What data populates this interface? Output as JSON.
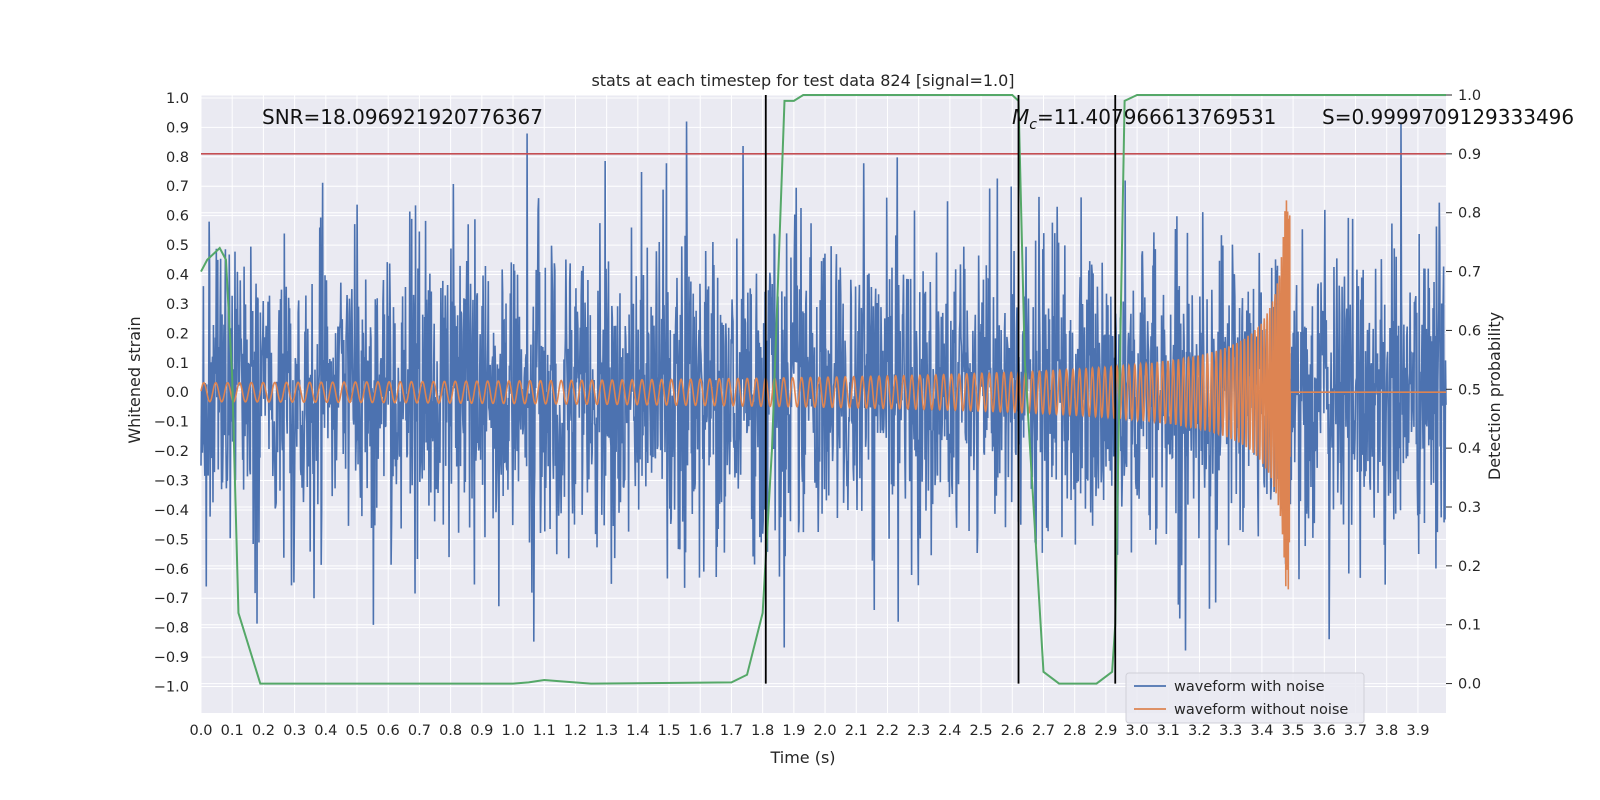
{
  "chart_data": {
    "type": "line",
    "title": "stats at each timestep for test data 824 [signal=1.0]",
    "xlabel": "Time (s)",
    "ylabel": "Whitened strain",
    "ylabel_right": "Detection probability",
    "xlim": [
      0.0,
      3.99
    ],
    "ylim": [
      -1.09,
      1.01
    ],
    "ylim_right": [
      -0.05,
      1.0
    ],
    "xticks": [
      "0.0",
      "0.1",
      "0.2",
      "0.3",
      "0.4",
      "0.5",
      "0.6",
      "0.7",
      "0.8",
      "0.9",
      "1.0",
      "1.1",
      "1.2",
      "1.3",
      "1.4",
      "1.5",
      "1.6",
      "1.7",
      "1.8",
      "1.9",
      "2.0",
      "2.1",
      "2.2",
      "2.3",
      "2.4",
      "2.5",
      "2.6",
      "2.7",
      "2.8",
      "2.9",
      "3.0",
      "3.1",
      "3.2",
      "3.3",
      "3.4",
      "3.5",
      "3.6",
      "3.7",
      "3.8",
      "3.9"
    ],
    "yticks": [
      "1.0",
      "0.9",
      "0.8",
      "0.7",
      "0.6",
      "0.5",
      "0.4",
      "0.3",
      "0.2",
      "0.1",
      "0.0",
      "−0.1",
      "−0.2",
      "−0.3",
      "−0.4",
      "−0.5",
      "−0.6",
      "−0.7",
      "−0.8",
      "−0.9",
      "−1.0"
    ],
    "yticks_right": [
      "1.0",
      "0.9",
      "0.8",
      "0.7",
      "0.6",
      "0.5",
      "0.4",
      "0.3",
      "0.2",
      "0.1",
      "0.0"
    ],
    "annotations": {
      "snr": "SNR=18.096921920776367",
      "mc_symbol": "M",
      "mc_sub": "c",
      "mc_value": "=11.407966613769531",
      "s": "S=0.9999709129333496"
    },
    "threshold_right": 0.9,
    "vertical_lines_x": [
      1.81,
      2.62,
      2.93
    ],
    "series": [
      {
        "name": "waveform with noise",
        "color": "#4c72b0",
        "kind": "noise",
        "amplitude_range": [
          -1.0,
          0.92
        ]
      },
      {
        "name": "waveform without noise",
        "color": "#dd8452",
        "kind": "chirp",
        "merger_time": 3.49,
        "peak_amplitude": 0.67
      },
      {
        "name": "detection probability",
        "color": "#55a868",
        "axis": "right",
        "x": [
          0.0,
          0.02,
          0.06,
          0.08,
          0.1,
          0.12,
          0.19,
          1.0,
          1.05,
          1.1,
          1.15,
          1.25,
          1.7,
          1.75,
          1.8,
          1.83,
          1.87,
          1.9,
          1.93,
          2.6,
          2.62,
          2.64,
          2.7,
          2.75,
          2.87,
          2.92,
          2.93,
          2.96,
          3.0,
          3.99
        ],
        "y": [
          0.7,
          0.72,
          0.74,
          0.72,
          0.52,
          0.12,
          0.0,
          0.0,
          0.002,
          0.006,
          0.004,
          0.0,
          0.002,
          0.015,
          0.12,
          0.4,
          0.99,
          0.99,
          1.0,
          1.0,
          0.99,
          0.55,
          0.02,
          0.0,
          0.0,
          0.02,
          0.1,
          0.99,
          1.0,
          1.0
        ]
      },
      {
        "name": "threshold",
        "color": "#c44e52",
        "axis": "right"
      }
    ],
    "legend": {
      "placement": "lower-right",
      "entries": [
        {
          "label": "waveform with noise",
          "color": "#4c72b0"
        },
        {
          "label": "waveform without noise",
          "color": "#dd8452"
        }
      ]
    },
    "colors": {
      "background": "#eaeaf2",
      "grid": "#ffffff",
      "vline": "#000000"
    }
  }
}
